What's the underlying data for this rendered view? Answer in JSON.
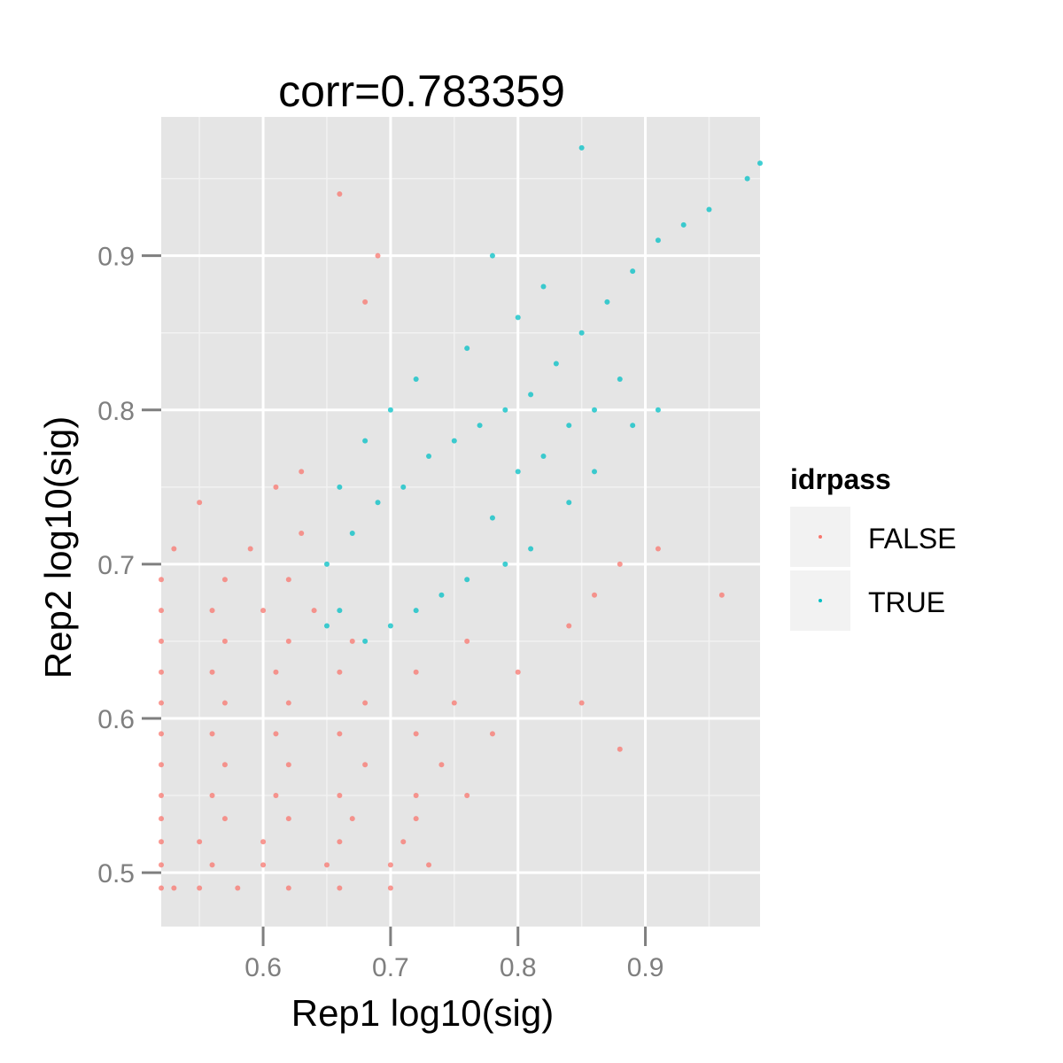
{
  "chart_data": {
    "type": "scatter",
    "title": "corr=0.783359",
    "xlabel": "Rep1 log10(sig)",
    "ylabel": "Rep2 log10(sig)",
    "xlim": [
      0.52,
      0.99
    ],
    "ylim": [
      0.465,
      0.99
    ],
    "x_ticks": [
      0.6,
      0.7,
      0.8,
      0.9
    ],
    "x_tick_labels": [
      "0.6",
      "0.7",
      "0.8",
      "0.9"
    ],
    "y_ticks": [
      0.5,
      0.6,
      0.7,
      0.8,
      0.9
    ],
    "y_tick_labels": [
      "0.5",
      "0.6",
      "0.7",
      "0.8",
      "0.9"
    ],
    "grid": true,
    "legend": {
      "title": "idrpass",
      "placement": "right",
      "entries": [
        {
          "label": "FALSE",
          "color": "#F8766D"
        },
        {
          "label": "TRUE",
          "color": "#00BFC4"
        }
      ]
    },
    "series": [
      {
        "name": "FALSE",
        "color": "#F8766D",
        "points": [
          [
            0.52,
            0.49
          ],
          [
            0.53,
            0.49
          ],
          [
            0.55,
            0.49
          ],
          [
            0.58,
            0.49
          ],
          [
            0.62,
            0.49
          ],
          [
            0.66,
            0.49
          ],
          [
            0.7,
            0.49
          ],
          [
            0.52,
            0.505
          ],
          [
            0.56,
            0.505
          ],
          [
            0.6,
            0.505
          ],
          [
            0.65,
            0.505
          ],
          [
            0.7,
            0.505
          ],
          [
            0.73,
            0.505
          ],
          [
            0.52,
            0.52
          ],
          [
            0.55,
            0.52
          ],
          [
            0.6,
            0.52
          ],
          [
            0.66,
            0.52
          ],
          [
            0.71,
            0.52
          ],
          [
            0.52,
            0.535
          ],
          [
            0.57,
            0.535
          ],
          [
            0.62,
            0.535
          ],
          [
            0.67,
            0.535
          ],
          [
            0.72,
            0.535
          ],
          [
            0.52,
            0.55
          ],
          [
            0.56,
            0.55
          ],
          [
            0.61,
            0.55
          ],
          [
            0.66,
            0.55
          ],
          [
            0.72,
            0.55
          ],
          [
            0.76,
            0.55
          ],
          [
            0.52,
            0.57
          ],
          [
            0.57,
            0.57
          ],
          [
            0.62,
            0.57
          ],
          [
            0.68,
            0.57
          ],
          [
            0.74,
            0.57
          ],
          [
            0.52,
            0.59
          ],
          [
            0.56,
            0.59
          ],
          [
            0.61,
            0.59
          ],
          [
            0.66,
            0.59
          ],
          [
            0.72,
            0.59
          ],
          [
            0.78,
            0.59
          ],
          [
            0.52,
            0.61
          ],
          [
            0.57,
            0.61
          ],
          [
            0.62,
            0.61
          ],
          [
            0.68,
            0.61
          ],
          [
            0.75,
            0.61
          ],
          [
            0.52,
            0.63
          ],
          [
            0.56,
            0.63
          ],
          [
            0.61,
            0.63
          ],
          [
            0.66,
            0.63
          ],
          [
            0.72,
            0.63
          ],
          [
            0.8,
            0.63
          ],
          [
            0.52,
            0.65
          ],
          [
            0.57,
            0.65
          ],
          [
            0.62,
            0.65
          ],
          [
            0.67,
            0.65
          ],
          [
            0.76,
            0.65
          ],
          [
            0.84,
            0.66
          ],
          [
            0.52,
            0.67
          ],
          [
            0.56,
            0.67
          ],
          [
            0.6,
            0.67
          ],
          [
            0.64,
            0.67
          ],
          [
            0.86,
            0.68
          ],
          [
            0.52,
            0.69
          ],
          [
            0.57,
            0.69
          ],
          [
            0.62,
            0.69
          ],
          [
            0.88,
            0.7
          ],
          [
            0.53,
            0.71
          ],
          [
            0.59,
            0.71
          ],
          [
            0.63,
            0.72
          ],
          [
            0.55,
            0.74
          ],
          [
            0.61,
            0.75
          ],
          [
            0.63,
            0.76
          ],
          [
            0.68,
            0.87
          ],
          [
            0.66,
            0.94
          ],
          [
            0.69,
            0.9
          ],
          [
            0.96,
            0.68
          ],
          [
            0.88,
            0.58
          ],
          [
            0.85,
            0.61
          ],
          [
            0.91,
            0.71
          ]
        ]
      },
      {
        "name": "TRUE",
        "color": "#00BFC4",
        "points": [
          [
            0.65,
            0.66
          ],
          [
            0.66,
            0.67
          ],
          [
            0.68,
            0.65
          ],
          [
            0.7,
            0.66
          ],
          [
            0.72,
            0.67
          ],
          [
            0.74,
            0.68
          ],
          [
            0.76,
            0.69
          ],
          [
            0.65,
            0.7
          ],
          [
            0.67,
            0.72
          ],
          [
            0.69,
            0.74
          ],
          [
            0.71,
            0.75
          ],
          [
            0.73,
            0.77
          ],
          [
            0.75,
            0.78
          ],
          [
            0.77,
            0.79
          ],
          [
            0.79,
            0.8
          ],
          [
            0.81,
            0.81
          ],
          [
            0.83,
            0.83
          ],
          [
            0.85,
            0.85
          ],
          [
            0.87,
            0.87
          ],
          [
            0.89,
            0.89
          ],
          [
            0.91,
            0.91
          ],
          [
            0.66,
            0.75
          ],
          [
            0.68,
            0.78
          ],
          [
            0.7,
            0.8
          ],
          [
            0.72,
            0.82
          ],
          [
            0.76,
            0.84
          ],
          [
            0.8,
            0.86
          ],
          [
            0.82,
            0.88
          ],
          [
            0.78,
            0.73
          ],
          [
            0.8,
            0.76
          ],
          [
            0.82,
            0.77
          ],
          [
            0.84,
            0.79
          ],
          [
            0.86,
            0.8
          ],
          [
            0.88,
            0.82
          ],
          [
            0.89,
            0.79
          ],
          [
            0.84,
            0.74
          ],
          [
            0.86,
            0.76
          ],
          [
            0.81,
            0.71
          ],
          [
            0.79,
            0.7
          ],
          [
            0.93,
            0.92
          ],
          [
            0.95,
            0.93
          ],
          [
            0.98,
            0.95
          ],
          [
            0.99,
            0.96
          ],
          [
            0.85,
            0.97
          ],
          [
            0.78,
            0.9
          ],
          [
            0.91,
            0.8
          ]
        ]
      }
    ]
  }
}
